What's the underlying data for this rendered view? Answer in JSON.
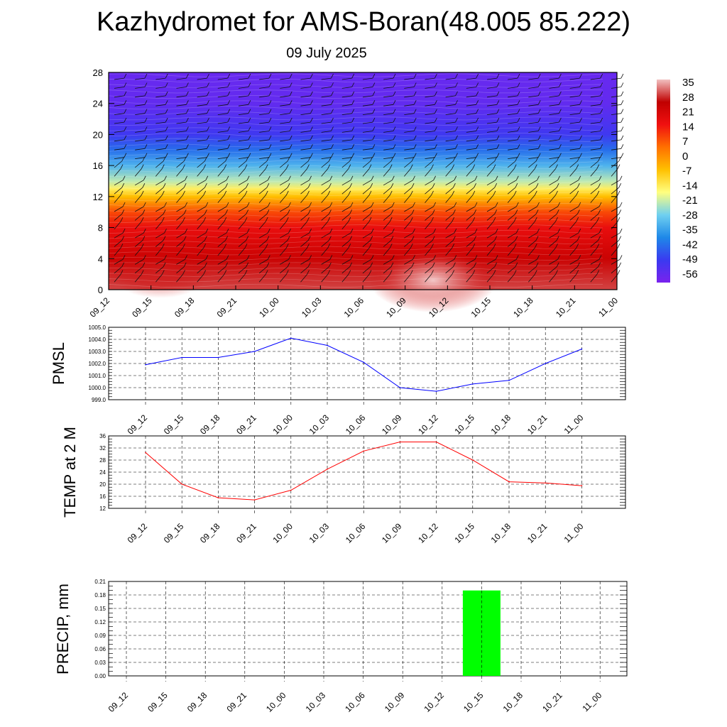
{
  "header": {
    "title": "Kazhydromet for AMS-Boran(48.005 85.222)",
    "date": "09 July 2025"
  },
  "chart_data": [
    {
      "type": "heatmap",
      "name": "upper-air temperature and wind cross-section",
      "x_labels": [
        "09_12",
        "09_15",
        "09_18",
        "09_21",
        "10_00",
        "10_03",
        "10_06",
        "10_09",
        "10_12",
        "10_15",
        "10_18",
        "10_21",
        "11_00"
      ],
      "y_ticks": [
        0,
        4,
        8,
        12,
        16,
        20,
        24,
        28
      ],
      "ylim": [
        0,
        28
      ],
      "colorbar_labels": [
        "35",
        "28",
        "21",
        "14",
        "7",
        "0",
        "-7",
        "-14",
        "-21",
        "-28",
        "-35",
        "-42",
        "-49",
        "-56"
      ],
      "colorbar_range": [
        -60,
        37
      ],
      "temperature_profile": [
        {
          "level": 0,
          "value": 30
        },
        {
          "level": 4,
          "value": 24
        },
        {
          "level": 8,
          "value": 17
        },
        {
          "level": 10,
          "value": 9
        },
        {
          "level": 12,
          "value": -6
        },
        {
          "level": 13,
          "value": -14
        },
        {
          "level": 14,
          "value": -22
        },
        {
          "level": 16,
          "value": -32
        },
        {
          "level": 18,
          "value": -42
        },
        {
          "level": 20,
          "value": -50
        },
        {
          "level": 24,
          "value": -56
        },
        {
          "level": 28,
          "value": -57
        }
      ],
      "overlay": "wind barbs",
      "colors": [
        "#7a22ee",
        "#3a3af0",
        "#1e88e8",
        "#6fd0f0",
        "#ffff80",
        "#ffc000",
        "#ff7000",
        "#f01010",
        "#c00000",
        "#f2c0c0"
      ]
    },
    {
      "type": "line",
      "ylabel": "PMSL",
      "ylim": [
        999.0,
        1005.0
      ],
      "y_ticks": [
        "999.0",
        "1000.0",
        "1001.0",
        "1002.0",
        "1003.0",
        "1004.0",
        "1005.0"
      ],
      "x_labels": [
        "09_12",
        "09_15",
        "09_18",
        "09_21",
        "10_00",
        "10_03",
        "10_06",
        "10_09",
        "10_12",
        "10_15",
        "10_18",
        "10_21",
        "11_00"
      ],
      "values": [
        1001.9,
        1002.5,
        1002.5,
        1003.0,
        1004.1,
        1003.5,
        1002.1,
        1000.0,
        999.7,
        1000.3,
        1000.6,
        1002.0,
        1003.2
      ],
      "color": "#0000ff",
      "grid": true
    },
    {
      "type": "line",
      "ylabel": "TEMP at 2 M",
      "ylim": [
        12,
        36
      ],
      "y_ticks": [
        "12",
        "16",
        "20",
        "24",
        "28",
        "32",
        "36"
      ],
      "x_labels": [
        "09_12",
        "09_15",
        "09_18",
        "09_21",
        "10_00",
        "10_03",
        "10_06",
        "10_09",
        "10_12",
        "10_15",
        "10_18",
        "10_21",
        "11_00"
      ],
      "values": [
        30.5,
        20,
        15.5,
        14.8,
        18,
        25,
        31,
        34,
        34,
        28,
        20.8,
        20.4,
        19.5
      ],
      "color": "#ff0000",
      "grid": true
    },
    {
      "type": "bar",
      "ylabel": "PRECIP, mm",
      "ylim": [
        0,
        0.21
      ],
      "y_ticks": [
        "0.00",
        "0.03",
        "0.06",
        "0.09",
        "0.12",
        "0.15",
        "0.18",
        "0.21"
      ],
      "categories": [
        "09_12",
        "09_15",
        "09_18",
        "09_21",
        "10_00",
        "10_03",
        "10_06",
        "10_09",
        "10_12",
        "10_15",
        "10_18",
        "10_21",
        "11_00"
      ],
      "values": [
        0,
        0,
        0,
        0,
        0,
        0,
        0,
        0,
        0,
        0.19,
        0,
        0,
        0
      ],
      "color": "#00ff00",
      "grid": true
    }
  ]
}
